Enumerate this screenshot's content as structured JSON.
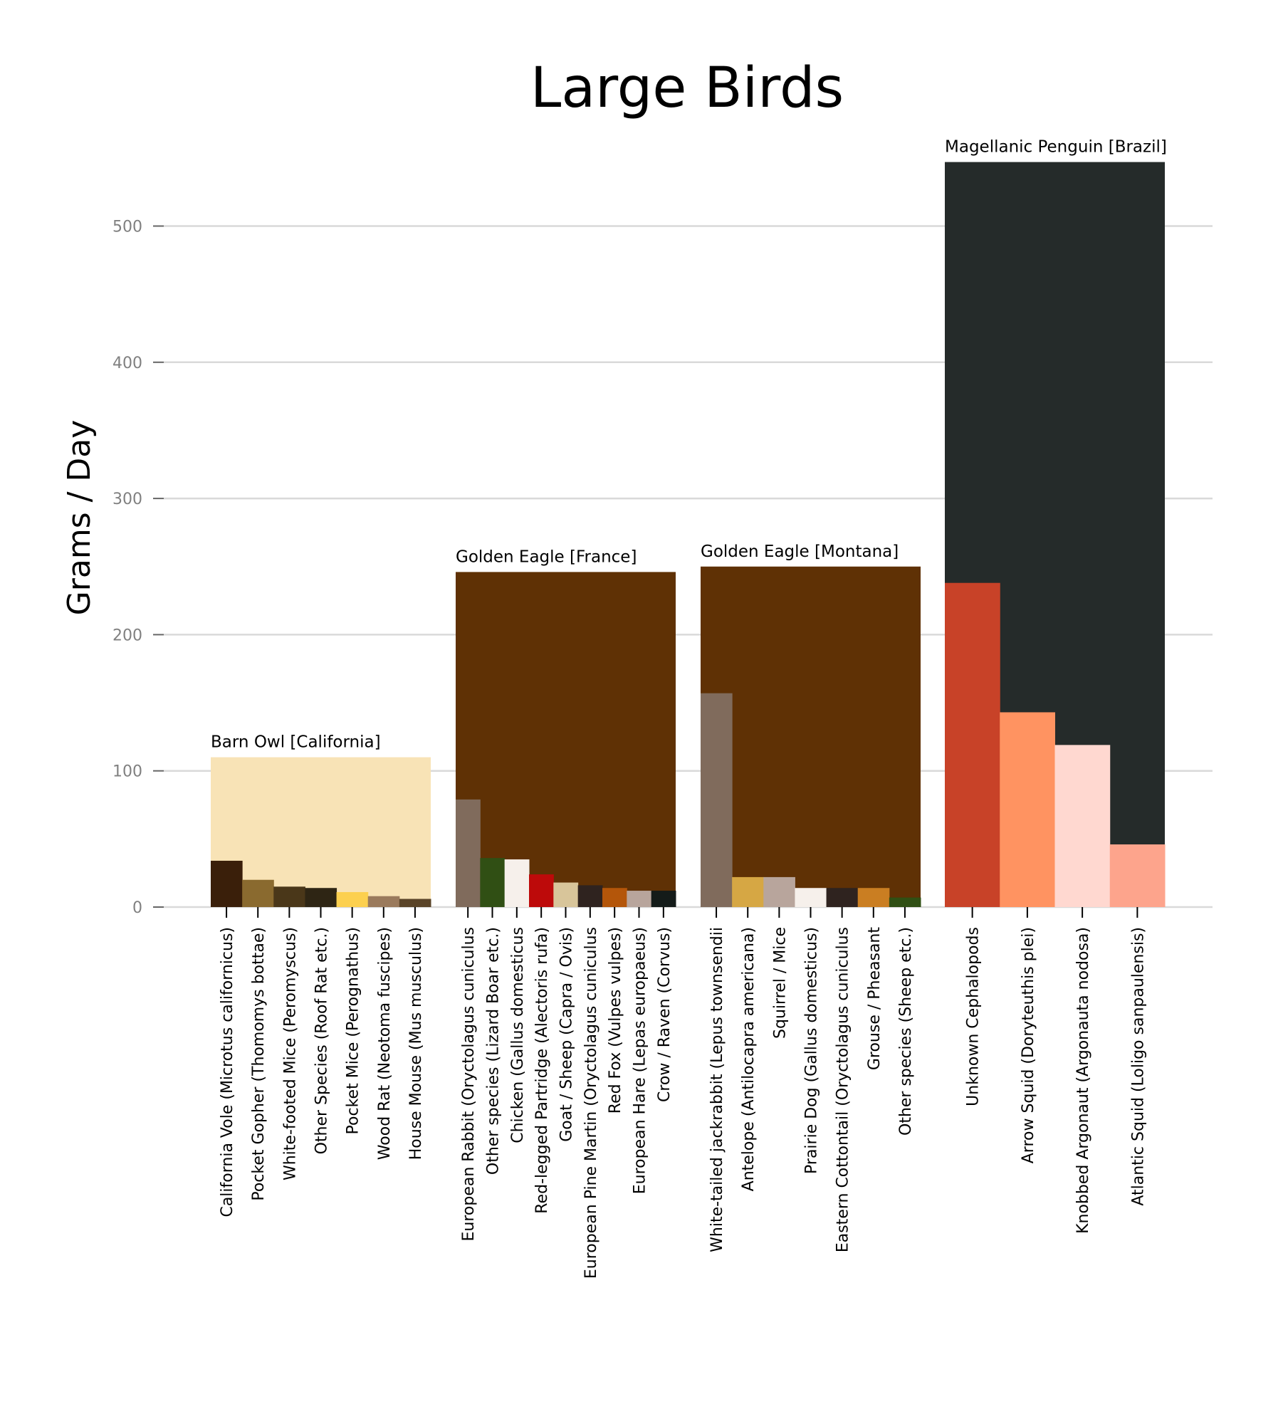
{
  "chart_data": {
    "type": "bar",
    "title": "Large Birds",
    "ylabel": "Grams / Day",
    "ylim": [
      0,
      550
    ],
    "yticks": [
      0,
      100,
      200,
      300,
      400,
      500
    ],
    "grid": "horizontal",
    "groups": [
      {
        "name": "Barn Owl [California]",
        "total": 110,
        "total_color": "#f8e3b6",
        "items": [
          {
            "label": "California Vole (Microtus californicus)",
            "value": 34,
            "color": "#3a1f0a"
          },
          {
            "label": "Pocket Gopher (Thomomys bottae)",
            "value": 20,
            "color": "#8a6a2f"
          },
          {
            "label": "White-footed Mice (Peromyscus)",
            "value": 15,
            "color": "#4a3719"
          },
          {
            "label": "Other Species (Roof Rat etc.)",
            "value": 14,
            "color": "#2e2514"
          },
          {
            "label": "Pocket Mice (Perognathus)",
            "value": 11,
            "color": "#fcd04f"
          },
          {
            "label": "Wood Rat (Neotoma fuscipes)",
            "value": 8,
            "color": "#9a7a5c"
          },
          {
            "label": "House Mouse (Mus musculus)",
            "value": 6,
            "color": "#5a4428"
          }
        ]
      },
      {
        "name": "Golden Eagle [France]",
        "total": 246,
        "total_color": "#5f3105",
        "items": [
          {
            "label": "European Rabbit (Oryctolagus cuniculus",
            "value": 79,
            "color": "#806b5c"
          },
          {
            "label": "Other species (Lizard Boar etc.)",
            "value": 36,
            "color": "#304f14"
          },
          {
            "label": "Chicken (Gallus domesticus",
            "value": 35,
            "color": "#f6f0eb"
          },
          {
            "label": "Red-legged Partridge (Alectoris rufa)",
            "value": 24,
            "color": "#bd0a0a"
          },
          {
            "label": "Goat / Sheep (Capra / Ovis)",
            "value": 18,
            "color": "#d8c59a"
          },
          {
            "label": "European Pine Martin (Oryctolagus cuniculus",
            "value": 16,
            "color": "#2f231f"
          },
          {
            "label": "Red Fox (Vulpes vulpes)",
            "value": 14,
            "color": "#b4560a"
          },
          {
            "label": "European Hare (Lepas europaeus)",
            "value": 12,
            "color": "#b8a59c"
          },
          {
            "label": "Crow / Raven (Corvus)",
            "value": 12,
            "color": "#141b19"
          }
        ]
      },
      {
        "name": "Golden Eagle [Montana]",
        "total": 250,
        "total_color": "#5f3105",
        "items": [
          {
            "label": "White-tailed jackrabbit (Lepus townsendii",
            "value": 157,
            "color": "#806b5c"
          },
          {
            "label": "Antelope (Antilocapra americana)",
            "value": 22,
            "color": "#d6a744"
          },
          {
            "label": "Squirrel / Mice",
            "value": 22,
            "color": "#b8a59c"
          },
          {
            "label": "Prairie Dog (Gallus domesticus)",
            "value": 14,
            "color": "#f6f0eb"
          },
          {
            "label": "Eastern Cottontail (Oryctolagus cuniculus",
            "value": 14,
            "color": "#2f231f"
          },
          {
            "label": "Grouse / Pheasant",
            "value": 14,
            "color": "#ca7e22"
          },
          {
            "label": "Other species (Sheep etc.)",
            "value": 7,
            "color": "#304f14"
          }
        ]
      },
      {
        "name": "Magellanic Penguin [Brazil]",
        "total": 547,
        "total_color": "#252b2a",
        "items": [
          {
            "label": "Unknown Cephalopods",
            "value": 238,
            "color": "#c84228"
          },
          {
            "label": "Arrow Squid (Doryteuthis plei)",
            "value": 143,
            "color": "#ff9361"
          },
          {
            "label": "Knobbed Argonaut (Argonauta nodosa)",
            "value": 119,
            "color": "#ffd8d0"
          },
          {
            "label": "Atlantic Squid (Loligo sanpaulensis)",
            "value": 46,
            "color": "#fda48c"
          }
        ]
      }
    ]
  }
}
